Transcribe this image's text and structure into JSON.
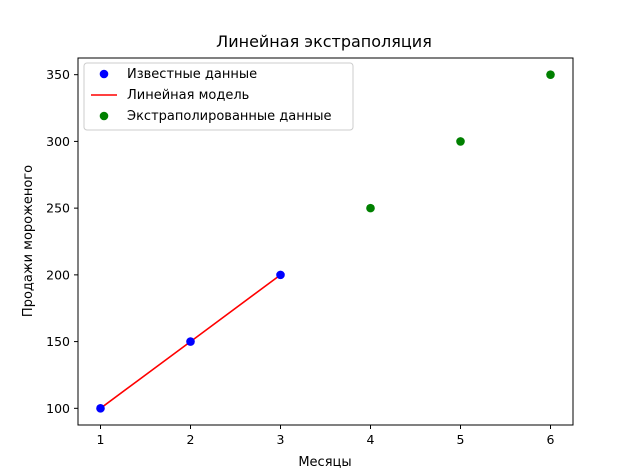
{
  "chart_data": {
    "type": "scatter",
    "title": "Линейная экстраполяция",
    "xlabel": "Месяцы",
    "ylabel": "Продажи мороженого",
    "xlim": [
      0.75,
      6.25
    ],
    "ylim": [
      87.5,
      362.5
    ],
    "x_ticks": [
      1,
      2,
      3,
      4,
      5,
      6
    ],
    "y_ticks": [
      100,
      150,
      200,
      250,
      300,
      350
    ],
    "grid": false,
    "legend_position": "top-left",
    "series": [
      {
        "name": "Известные данные",
        "kind": "scatter",
        "color": "#0000ff",
        "x": [
          1,
          2,
          3
        ],
        "y": [
          100,
          150,
          200
        ]
      },
      {
        "name": "Линейная модель",
        "kind": "line",
        "color": "#ff0000",
        "x": [
          1,
          2,
          3
        ],
        "y": [
          100,
          150,
          200
        ]
      },
      {
        "name": "Экстраполированные данные",
        "kind": "scatter",
        "color": "#008000",
        "x": [
          4,
          5,
          6
        ],
        "y": [
          250,
          300,
          350
        ]
      }
    ]
  }
}
